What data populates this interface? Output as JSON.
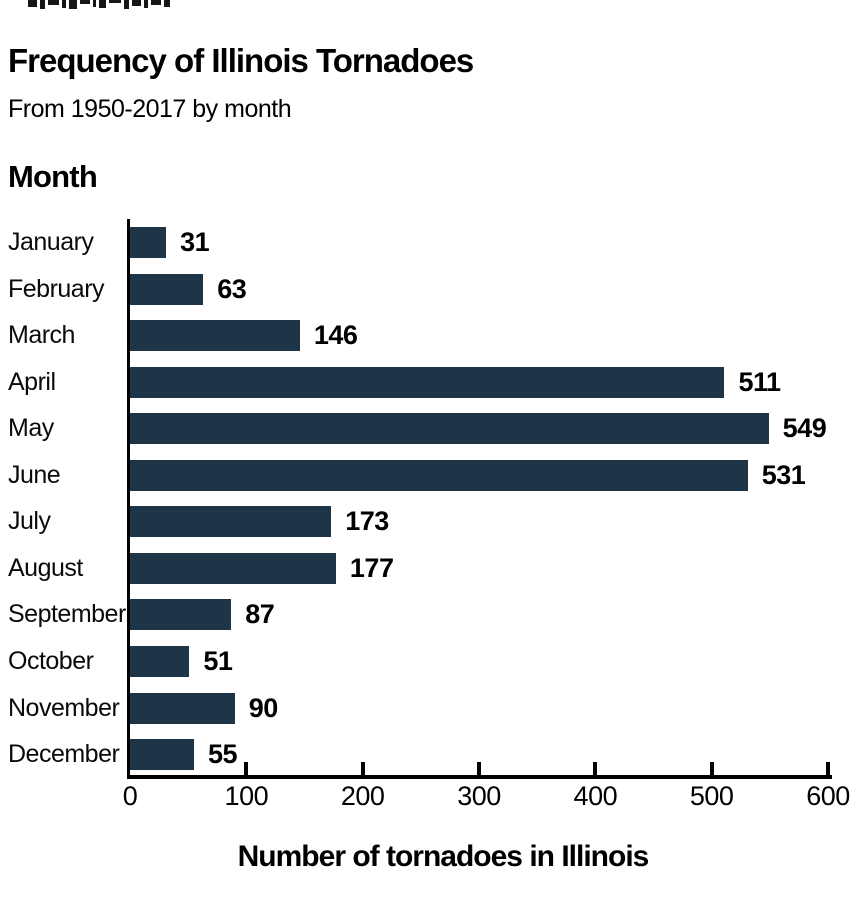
{
  "page": {
    "title": "Frequency of Illinois Tornadoes",
    "subtitle": "From 1950-2017 by month",
    "y_axis_heading": "Month",
    "x_axis_title": "Number of tornadoes in Illinois"
  },
  "chart_data": {
    "type": "bar",
    "orientation": "horizontal",
    "title": "Frequency of Illinois Tornadoes",
    "subtitle": "From 1950-2017 by month",
    "xlabel": "Number of tornadoes in Illinois",
    "ylabel": "Month",
    "categories": [
      "January",
      "February",
      "March",
      "April",
      "May",
      "June",
      "July",
      "August",
      "September",
      "October",
      "November",
      "December"
    ],
    "values": [
      31,
      63,
      146,
      511,
      549,
      531,
      173,
      177,
      87,
      51,
      90,
      55
    ],
    "value_labels_shown": true,
    "xlim": [
      0,
      600
    ],
    "x_ticks": [
      0,
      100,
      200,
      300,
      400,
      500,
      600
    ],
    "grid": false,
    "legend": false,
    "bar_color": "#1e3447",
    "axis_color": "#000000",
    "text_color": "#000000",
    "background_color": "#ffffff"
  }
}
